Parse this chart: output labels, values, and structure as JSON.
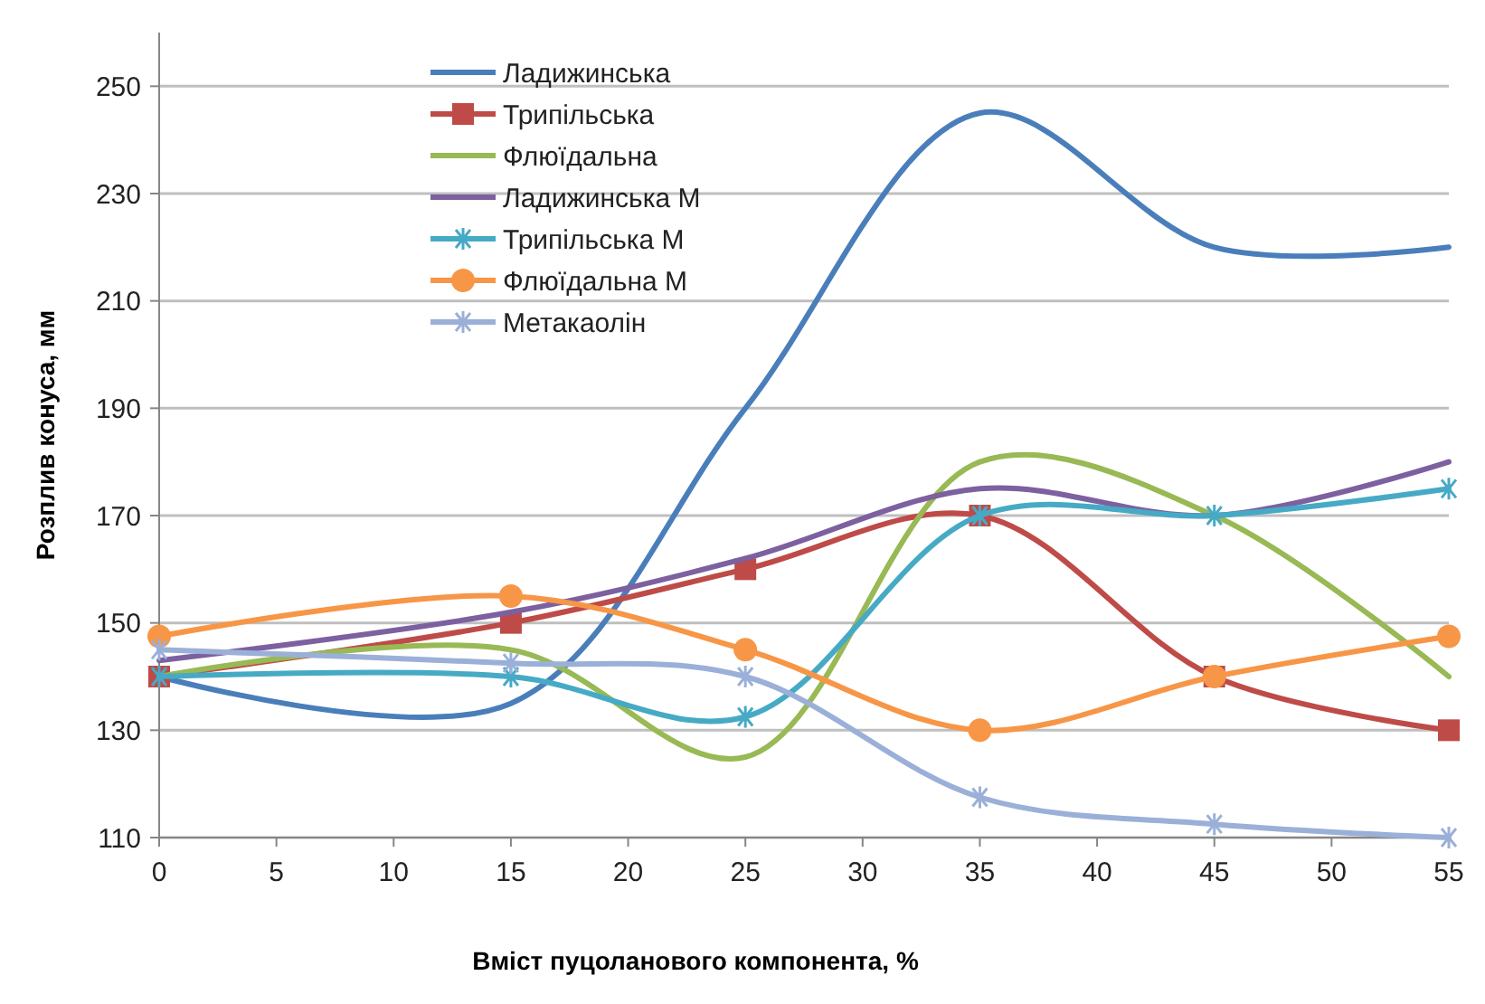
{
  "chart_data": {
    "type": "line",
    "xlabel": "Вміст пуцоланового  компонента, %",
    "ylabel": "Розплив конуса, мм",
    "x": [
      0,
      15,
      25,
      35,
      45,
      55
    ],
    "xlim": [
      0,
      55
    ],
    "xticks": [
      0,
      5,
      10,
      15,
      20,
      25,
      30,
      35,
      40,
      45,
      50,
      55
    ],
    "ylim": [
      110,
      260
    ],
    "yticks": [
      110,
      130,
      150,
      170,
      190,
      210,
      230,
      250
    ],
    "grid": "y",
    "legend": "top left",
    "series": [
      {
        "name": "Ладижинська",
        "color": "#4a7ebb",
        "marker": "none",
        "values": [
          140,
          135,
          190,
          245,
          220,
          220
        ]
      },
      {
        "name": "Трипільська",
        "color": "#be4b48",
        "marker": "square",
        "values": [
          140,
          150,
          160,
          170,
          140,
          130
        ]
      },
      {
        "name": "Флюїдальна",
        "color": "#98b954",
        "marker": "none",
        "values": [
          140,
          145,
          125,
          180,
          170,
          140
        ]
      },
      {
        "name": "Ладижинська М",
        "color": "#7d60a0",
        "marker": "none",
        "values": [
          143,
          152,
          162,
          175,
          170,
          180
        ]
      },
      {
        "name": "Трипільська М",
        "color": "#46aac5",
        "marker": "cross",
        "values": [
          140,
          140,
          132.5,
          170,
          170,
          175
        ]
      },
      {
        "name": "Флюїдальна М",
        "color": "#f79646",
        "marker": "circle",
        "values": [
          147.5,
          155,
          145,
          130,
          140,
          147.5
        ]
      },
      {
        "name": "Метакаолін",
        "color": "#9bb0d8",
        "marker": "cross",
        "values": [
          145,
          142.5,
          140,
          117.5,
          112.5,
          110
        ]
      }
    ]
  }
}
